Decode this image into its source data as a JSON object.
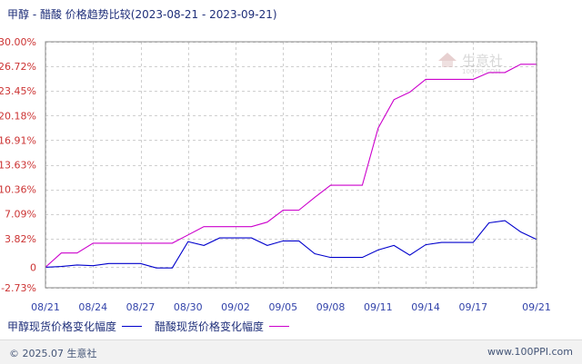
{
  "title": "甲醇 - 醋酸 价格趋势比较(2023-08-21 - 2023-09-21)",
  "chart_data": {
    "type": "line",
    "ylim": [
      -2.73,
      30.0
    ],
    "y_ticks": [
      "30.00%",
      "26.72%",
      "23.45%",
      "20.18%",
      "16.91%",
      "13.63%",
      "10.36%",
      "7.09%",
      "3.82%",
      "0",
      "-2.73%"
    ],
    "y_tick_values": [
      30.0,
      26.72,
      23.45,
      20.18,
      16.91,
      13.63,
      10.36,
      7.09,
      3.82,
      0,
      -2.73
    ],
    "x_tick_labels": [
      "08/21",
      "08/24",
      "08/27",
      "08/30",
      "09/02",
      "09/05",
      "09/08",
      "09/11",
      "09/14",
      "09/17",
      "09/21"
    ],
    "x_tick_dates": [
      "2023-08-21",
      "2023-08-24",
      "2023-08-27",
      "2023-08-30",
      "2023-09-02",
      "2023-09-05",
      "2023-09-08",
      "2023-09-11",
      "2023-09-14",
      "2023-09-17",
      "2023-09-21"
    ],
    "grid": true,
    "legend_position": "bottom-left",
    "series": [
      {
        "name": "甲醇现货价格变化幅度",
        "color": "#0000cc",
        "points": [
          [
            "2023-08-21",
            0
          ],
          [
            "2023-08-22",
            0.1
          ],
          [
            "2023-08-23",
            0.3
          ],
          [
            "2023-08-24",
            0.2
          ],
          [
            "2023-08-25",
            0.5
          ],
          [
            "2023-08-26",
            0.5
          ],
          [
            "2023-08-27",
            0.5
          ],
          [
            "2023-08-28",
            -0.1
          ],
          [
            "2023-08-29",
            -0.1
          ],
          [
            "2023-08-30",
            3.4
          ],
          [
            "2023-08-31",
            2.9
          ],
          [
            "2023-09-01",
            3.9
          ],
          [
            "2023-09-02",
            3.9
          ],
          [
            "2023-09-03",
            3.9
          ],
          [
            "2023-09-04",
            2.9
          ],
          [
            "2023-09-05",
            3.5
          ],
          [
            "2023-09-06",
            3.5
          ],
          [
            "2023-09-07",
            1.8
          ],
          [
            "2023-09-08",
            1.3
          ],
          [
            "2023-09-09",
            1.3
          ],
          [
            "2023-09-10",
            1.3
          ],
          [
            "2023-09-11",
            2.3
          ],
          [
            "2023-09-12",
            2.9
          ],
          [
            "2023-09-13",
            1.6
          ],
          [
            "2023-09-14",
            3.0
          ],
          [
            "2023-09-15",
            3.3
          ],
          [
            "2023-09-16",
            3.3
          ],
          [
            "2023-09-17",
            3.3
          ],
          [
            "2023-09-18",
            5.9
          ],
          [
            "2023-09-19",
            6.2
          ],
          [
            "2023-09-20",
            4.7
          ],
          [
            "2023-09-21",
            3.7
          ]
        ]
      },
      {
        "name": "醋酸现货价格变化幅度",
        "color": "#cc00cc",
        "points": [
          [
            "2023-08-21",
            0
          ],
          [
            "2023-08-22",
            1.9
          ],
          [
            "2023-08-23",
            1.9
          ],
          [
            "2023-08-24",
            3.2
          ],
          [
            "2023-08-25",
            3.2
          ],
          [
            "2023-08-26",
            3.2
          ],
          [
            "2023-08-27",
            3.2
          ],
          [
            "2023-08-28",
            3.2
          ],
          [
            "2023-08-29",
            3.2
          ],
          [
            "2023-08-30",
            4.3
          ],
          [
            "2023-08-31",
            5.4
          ],
          [
            "2023-09-01",
            5.4
          ],
          [
            "2023-09-02",
            5.4
          ],
          [
            "2023-09-03",
            5.4
          ],
          [
            "2023-09-04",
            6.0
          ],
          [
            "2023-09-05",
            7.6
          ],
          [
            "2023-09-06",
            7.6
          ],
          [
            "2023-09-07",
            9.3
          ],
          [
            "2023-09-08",
            10.9
          ],
          [
            "2023-09-09",
            10.9
          ],
          [
            "2023-09-10",
            10.9
          ],
          [
            "2023-09-11",
            18.5
          ],
          [
            "2023-09-12",
            22.3
          ],
          [
            "2023-09-13",
            23.3
          ],
          [
            "2023-09-14",
            25.0
          ],
          [
            "2023-09-15",
            25.0
          ],
          [
            "2023-09-16",
            25.0
          ],
          [
            "2023-09-17",
            25.0
          ],
          [
            "2023-09-18",
            25.9
          ],
          [
            "2023-09-19",
            25.9
          ],
          [
            "2023-09-20",
            27.0
          ],
          [
            "2023-09-21",
            27.0
          ]
        ]
      }
    ]
  },
  "legend": {
    "items": [
      {
        "label": "甲醇现货价格变化幅度",
        "color": "#0000cc"
      },
      {
        "label": "醋酸现货价格变化幅度",
        "color": "#cc00cc"
      }
    ]
  },
  "watermark": {
    "brand": "生意社",
    "url": "100PPI.COM"
  },
  "footer": {
    "copyright": "© 2025.07 生意社",
    "url": "www.100PPI.com"
  }
}
